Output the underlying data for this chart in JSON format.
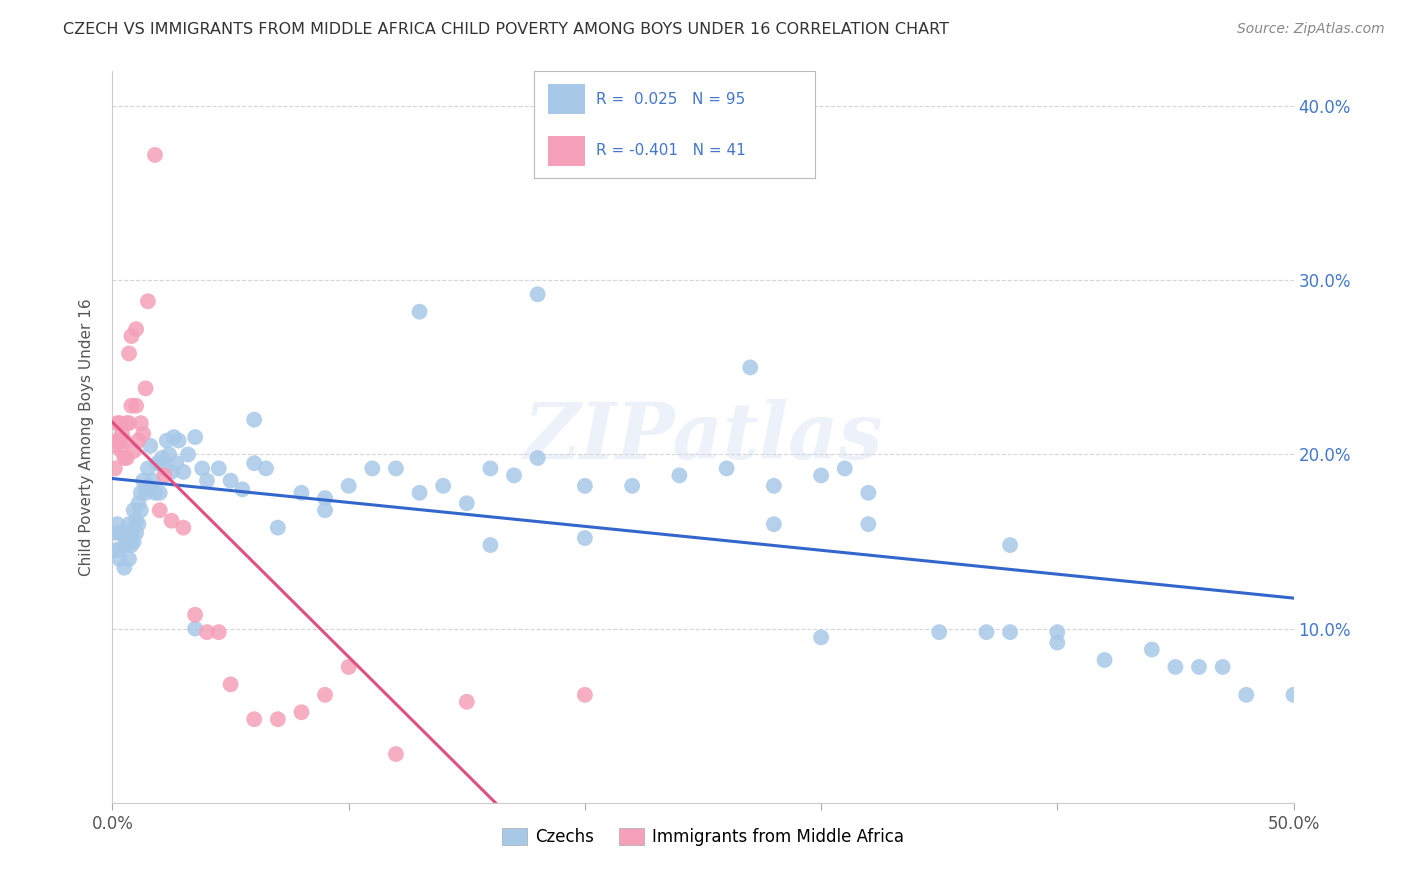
{
  "title": "CZECH VS IMMIGRANTS FROM MIDDLE AFRICA CHILD POVERTY AMONG BOYS UNDER 16 CORRELATION CHART",
  "source": "Source: ZipAtlas.com",
  "ylabel": "Child Poverty Among Boys Under 16",
  "xlim": [
    0.0,
    0.5
  ],
  "ylim": [
    0.0,
    0.42
  ],
  "yticks": [
    0.0,
    0.1,
    0.2,
    0.3,
    0.4
  ],
  "ytick_labels": [
    "",
    "10.0%",
    "20.0%",
    "30.0%",
    "40.0%"
  ],
  "legend_label1": "Czechs",
  "legend_label2": "Immigrants from Middle Africa",
  "blue_color": "#a8c8e8",
  "pink_color": "#f4a0b8",
  "blue_line_color": "#3366cc",
  "pink_line_color": "#e05080",
  "watermark": "ZIPatlas",
  "blue_points_x": [
    0.001,
    0.001,
    0.002,
    0.002,
    0.003,
    0.003,
    0.004,
    0.005,
    0.005,
    0.006,
    0.006,
    0.007,
    0.007,
    0.008,
    0.008,
    0.009,
    0.009,
    0.01,
    0.01,
    0.011,
    0.011,
    0.012,
    0.012,
    0.013,
    0.014,
    0.015,
    0.015,
    0.016,
    0.017,
    0.018,
    0.019,
    0.02,
    0.021,
    0.022,
    0.023,
    0.024,
    0.025,
    0.026,
    0.027,
    0.028,
    0.03,
    0.032,
    0.035,
    0.038,
    0.04,
    0.045,
    0.05,
    0.055,
    0.06,
    0.065,
    0.07,
    0.08,
    0.09,
    0.1,
    0.11,
    0.12,
    0.13,
    0.14,
    0.15,
    0.16,
    0.17,
    0.18,
    0.2,
    0.22,
    0.24,
    0.26,
    0.27,
    0.28,
    0.3,
    0.31,
    0.32,
    0.35,
    0.37,
    0.38,
    0.4,
    0.42,
    0.44,
    0.46,
    0.47,
    0.48,
    0.5,
    0.13,
    0.18,
    0.25,
    0.3,
    0.4,
    0.45,
    0.28,
    0.32,
    0.38,
    0.2,
    0.16,
    0.09,
    0.06,
    0.035
  ],
  "blue_points_y": [
    0.155,
    0.145,
    0.16,
    0.145,
    0.155,
    0.14,
    0.155,
    0.148,
    0.135,
    0.155,
    0.148,
    0.16,
    0.14,
    0.155,
    0.148,
    0.168,
    0.15,
    0.162,
    0.155,
    0.172,
    0.16,
    0.178,
    0.168,
    0.185,
    0.178,
    0.192,
    0.182,
    0.205,
    0.185,
    0.178,
    0.195,
    0.178,
    0.198,
    0.192,
    0.208,
    0.2,
    0.19,
    0.21,
    0.195,
    0.208,
    0.19,
    0.2,
    0.21,
    0.192,
    0.185,
    0.192,
    0.185,
    0.18,
    0.195,
    0.192,
    0.158,
    0.178,
    0.175,
    0.182,
    0.192,
    0.192,
    0.178,
    0.182,
    0.172,
    0.192,
    0.188,
    0.198,
    0.182,
    0.182,
    0.188,
    0.192,
    0.25,
    0.182,
    0.188,
    0.192,
    0.178,
    0.098,
    0.098,
    0.098,
    0.098,
    0.082,
    0.088,
    0.078,
    0.078,
    0.062,
    0.062,
    0.282,
    0.292,
    0.378,
    0.095,
    0.092,
    0.078,
    0.16,
    0.16,
    0.148,
    0.152,
    0.148,
    0.168,
    0.22,
    0.1
  ],
  "pink_points_x": [
    0.001,
    0.001,
    0.002,
    0.002,
    0.003,
    0.003,
    0.004,
    0.004,
    0.005,
    0.005,
    0.006,
    0.006,
    0.007,
    0.007,
    0.008,
    0.008,
    0.009,
    0.01,
    0.01,
    0.011,
    0.012,
    0.013,
    0.014,
    0.015,
    0.018,
    0.02,
    0.022,
    0.025,
    0.03,
    0.035,
    0.04,
    0.045,
    0.05,
    0.06,
    0.07,
    0.08,
    0.09,
    0.1,
    0.12,
    0.15,
    0.2
  ],
  "pink_points_y": [
    0.205,
    0.192,
    0.208,
    0.218,
    0.218,
    0.208,
    0.212,
    0.202,
    0.208,
    0.198,
    0.218,
    0.198,
    0.258,
    0.218,
    0.268,
    0.228,
    0.202,
    0.272,
    0.228,
    0.208,
    0.218,
    0.212,
    0.238,
    0.288,
    0.372,
    0.168,
    0.188,
    0.162,
    0.158,
    0.108,
    0.098,
    0.098,
    0.068,
    0.048,
    0.048,
    0.052,
    0.062,
    0.078,
    0.028,
    0.058,
    0.062
  ]
}
